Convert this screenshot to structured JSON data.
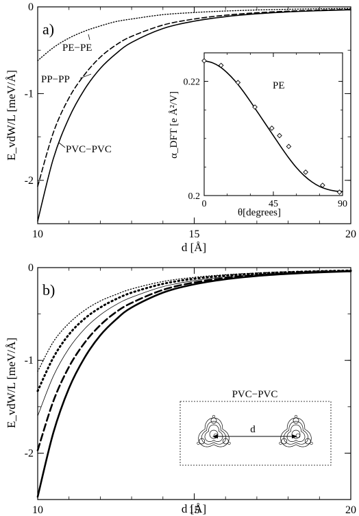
{
  "chart_data": [
    {
      "type": "line",
      "panel_label": "a)",
      "xlabel": "d [Å]",
      "ylabel": "E_vdW/L [meV/Å]",
      "xlim": [
        10,
        20
      ],
      "ylim": [
        -2.5,
        0
      ],
      "xticks": [
        10,
        15,
        20
      ],
      "yticks": [
        0,
        -1,
        -2
      ],
      "xtick_labels": [
        "10",
        "15",
        "20"
      ],
      "ytick_labels": [
        "0",
        "-1",
        "-2"
      ],
      "grid": false,
      "legend": "none",
      "annotations": [
        "PE−PE",
        "PP−PP",
        "PVC−PVC"
      ],
      "series": [
        {
          "name": "PE−PE",
          "style": "dotted",
          "x": [
            10,
            10.5,
            11,
            11.5,
            12,
            12.5,
            13,
            14,
            15,
            16,
            17,
            18,
            19,
            20
          ],
          "y": [
            -0.62,
            -0.47,
            -0.36,
            -0.28,
            -0.22,
            -0.17,
            -0.14,
            -0.09,
            -0.065,
            -0.048,
            -0.036,
            -0.028,
            -0.022,
            -0.018
          ]
        },
        {
          "name": "PP−PP",
          "style": "dashed",
          "x": [
            10,
            10.5,
            11,
            11.5,
            12,
            12.5,
            13,
            14,
            15,
            16,
            17,
            18,
            19,
            20
          ],
          "y": [
            -2.07,
            -1.45,
            -1.05,
            -0.78,
            -0.58,
            -0.44,
            -0.34,
            -0.21,
            -0.14,
            -0.096,
            -0.068,
            -0.05,
            -0.038,
            -0.03
          ]
        },
        {
          "name": "PVC−PVC",
          "style": "solid",
          "x": [
            10,
            10.5,
            11,
            11.5,
            12,
            12.5,
            13,
            14,
            15,
            16,
            17,
            18,
            19,
            20
          ],
          "y": [
            -2.47,
            -1.75,
            -1.28,
            -0.95,
            -0.71,
            -0.54,
            -0.41,
            -0.25,
            -0.165,
            -0.113,
            -0.08,
            -0.058,
            -0.044,
            -0.034
          ]
        }
      ]
    },
    {
      "type": "line",
      "panel_label": "inset",
      "annotation": "PE",
      "xlabel": "θ[degrees]",
      "ylabel": "α_DFT [e Å²/V]",
      "xlim": [
        0,
        90
      ],
      "ylim": [
        0.2,
        0.225
      ],
      "xticks": [
        0,
        45,
        90
      ],
      "yticks": [
        0.2,
        0.22
      ],
      "xtick_labels": [
        "0",
        "45",
        "90"
      ],
      "ytick_labels": [
        "0.2",
        "0.22"
      ],
      "series": [
        {
          "style": "solid",
          "x": [
            0,
            5,
            10,
            15,
            20,
            25,
            30,
            35,
            40,
            45,
            50,
            55,
            60,
            65,
            70,
            75,
            80,
            85,
            90
          ],
          "y": [
            0.2236,
            0.2233,
            0.2226,
            0.2215,
            0.2201,
            0.2184,
            0.2165,
            0.2145,
            0.2125,
            0.2105,
            0.2085,
            0.2066,
            0.2049,
            0.2035,
            0.2024,
            0.2016,
            0.2011,
            0.2008,
            0.2007
          ]
        },
        {
          "style": "diamond-markers",
          "x": [
            0,
            11,
            22,
            33,
            44,
            49,
            55,
            66,
            77,
            88
          ],
          "y": [
            0.2236,
            0.2228,
            0.2198,
            0.2155,
            0.2118,
            0.2105,
            0.2086,
            0.2041,
            0.2018,
            0.2006
          ]
        }
      ]
    },
    {
      "type": "line",
      "panel_label": "b)",
      "xlabel": "d [Å]",
      "ylabel": "E_vdW/L [meV/Å]",
      "xlim": [
        10,
        20
      ],
      "ylim": [
        -2.5,
        0
      ],
      "xticks": [
        10,
        15,
        20
      ],
      "yticks": [
        0,
        -1,
        -2
      ],
      "xtick_labels": [
        "10",
        "15",
        "20"
      ],
      "ytick_labels": [
        "0",
        "-1",
        "-2"
      ],
      "grid": false,
      "legend": "none",
      "inset_title": "PVC−PVC",
      "inset_label": "d",
      "series": [
        {
          "style": "dotted-thin",
          "x": [
            10,
            10.5,
            11,
            11.5,
            12,
            12.5,
            13,
            14,
            15,
            16,
            17,
            18,
            19,
            20
          ],
          "y": [
            -1.12,
            -0.8,
            -0.6,
            -0.46,
            -0.36,
            -0.29,
            -0.23,
            -0.15,
            -0.105,
            -0.077,
            -0.058,
            -0.045,
            -0.036,
            -0.03
          ]
        },
        {
          "style": "dotted-thick",
          "x": [
            10,
            10.5,
            11,
            11.5,
            12,
            12.5,
            13,
            14,
            15,
            16,
            17,
            18,
            19,
            20
          ],
          "y": [
            -1.33,
            -0.97,
            -0.72,
            -0.55,
            -0.43,
            -0.34,
            -0.27,
            -0.175,
            -0.12,
            -0.086,
            -0.064,
            -0.049,
            -0.039,
            -0.032
          ]
        },
        {
          "style": "solid-thin",
          "x": [
            10,
            10.5,
            11,
            11.5,
            12,
            12.5,
            13,
            14,
            15,
            16,
            17,
            18,
            19,
            20
          ],
          "y": [
            -1.6,
            -1.17,
            -0.87,
            -0.66,
            -0.51,
            -0.4,
            -0.32,
            -0.205,
            -0.14,
            -0.1,
            -0.074,
            -0.057,
            -0.045,
            -0.036
          ]
        },
        {
          "style": "dashed-thick",
          "x": [
            10,
            10.5,
            11,
            11.5,
            12,
            12.5,
            13,
            14,
            15,
            16,
            17,
            18,
            19,
            20
          ],
          "y": [
            -1.97,
            -1.44,
            -1.07,
            -0.81,
            -0.62,
            -0.48,
            -0.38,
            -0.24,
            -0.16,
            -0.113,
            -0.082,
            -0.062,
            -0.048,
            -0.038
          ]
        },
        {
          "style": "solid-thick",
          "x": [
            10,
            10.5,
            11,
            11.5,
            12,
            12.5,
            13,
            14,
            15,
            16,
            17,
            18,
            19,
            20
          ],
          "y": [
            -2.47,
            -1.78,
            -1.3,
            -0.97,
            -0.73,
            -0.56,
            -0.43,
            -0.27,
            -0.18,
            -0.125,
            -0.09,
            -0.067,
            -0.051,
            -0.04
          ]
        }
      ]
    }
  ]
}
